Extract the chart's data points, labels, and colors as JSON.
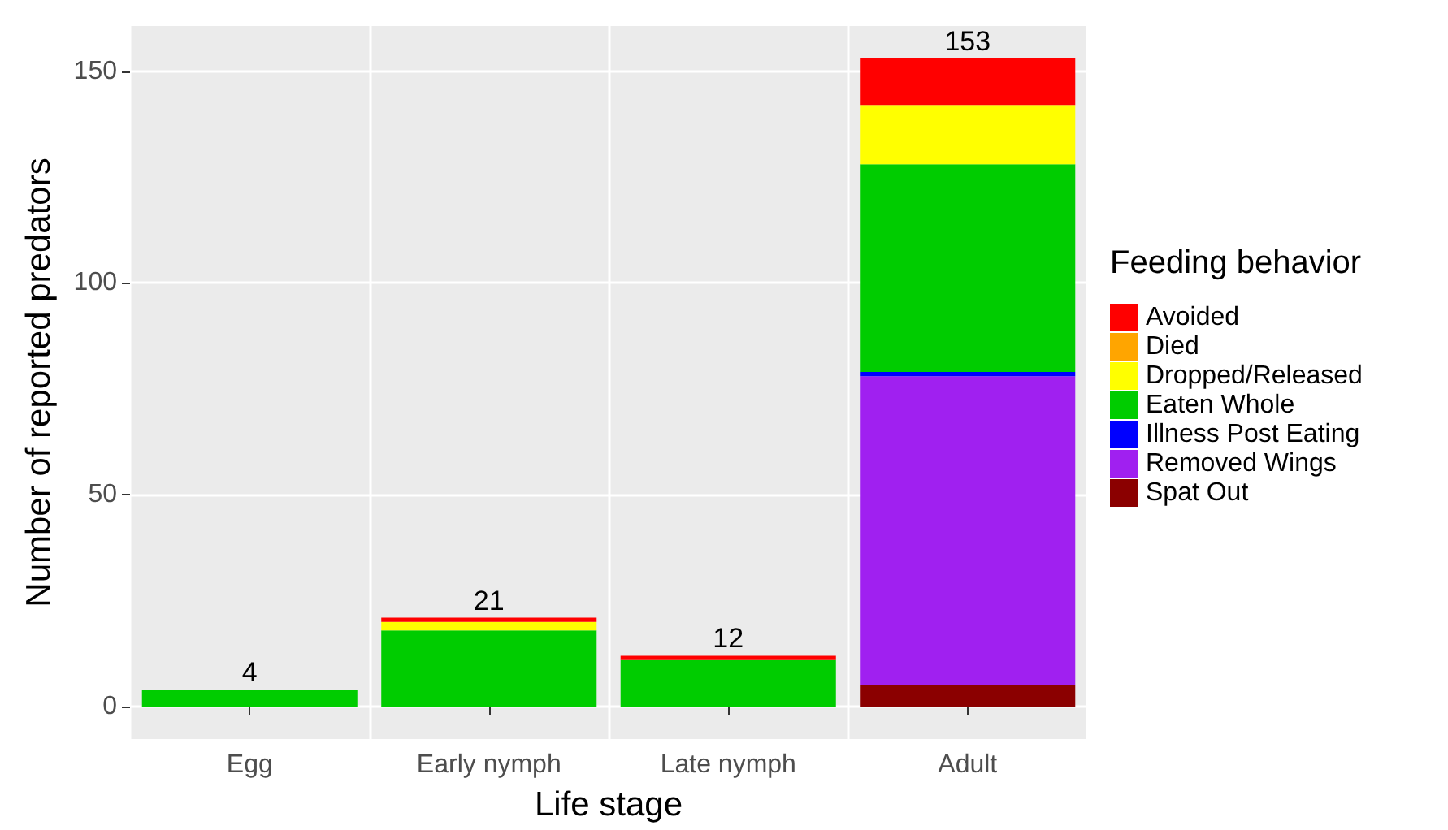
{
  "chart_data": {
    "type": "bar",
    "stacked": true,
    "xlabel": "Life stage",
    "ylabel": "Number of reported predators",
    "legend_title": "Feeding behavior",
    "legend": "right",
    "categories": [
      "Egg",
      "Early nymph",
      "Late nymph",
      "Adult"
    ],
    "series": [
      {
        "name": "Spat Out",
        "color": "#8b0000",
        "values": [
          0,
          0,
          0,
          5
        ]
      },
      {
        "name": "Removed Wings",
        "color": "#a020f0",
        "values": [
          0,
          0,
          0,
          73
        ]
      },
      {
        "name": "Illness Post Eating",
        "color": "#0000ff",
        "values": [
          0,
          0,
          0,
          1
        ]
      },
      {
        "name": "Eaten Whole",
        "color": "#00cc00",
        "values": [
          4,
          18,
          11,
          49
        ]
      },
      {
        "name": "Dropped/Released",
        "color": "#ffff00",
        "values": [
          0,
          2,
          0,
          14
        ]
      },
      {
        "name": "Died",
        "color": "#ffa500",
        "values": [
          0,
          0,
          0,
          0
        ]
      },
      {
        "name": "Avoided",
        "color": "#ff0000",
        "values": [
          0,
          1,
          1,
          11
        ]
      }
    ],
    "totals": [
      "4",
      "21",
      "12",
      "153"
    ],
    "ylim": [
      -7.65,
      160.65
    ],
    "yticks": [
      0,
      50,
      100,
      150
    ],
    "grid": true
  }
}
